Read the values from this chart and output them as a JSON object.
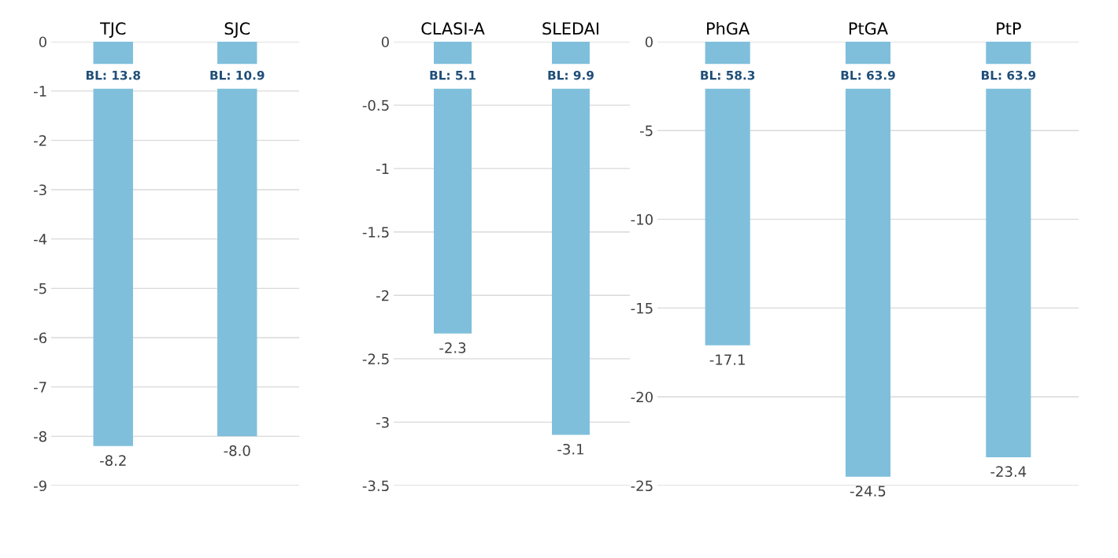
{
  "chart_data": [
    {
      "type": "bar",
      "categories": [
        "TJC",
        "SJC"
      ],
      "values": [
        -8.2,
        -8.0
      ],
      "value_labels": [
        "-8.2",
        "-8.0"
      ],
      "color": "#7fbfdb",
      "ylim": [
        -9,
        0
      ],
      "yticks": [
        0,
        -1,
        -2,
        -3,
        -4,
        -5,
        -6,
        -7,
        -8,
        -9
      ],
      "grid": "y",
      "annotations": [
        "BL: 13.8",
        "BL: 10.9"
      ]
    },
    {
      "type": "bar",
      "categories": [
        "CLASI-A",
        "SLEDAI"
      ],
      "values": [
        -2.3,
        -3.1
      ],
      "value_labels": [
        "-2.3",
        "-3.1"
      ],
      "color": "#7fbfdb",
      "ylim": [
        -3.5,
        0
      ],
      "yticks": [
        0,
        -0.5,
        -1,
        -1.5,
        -2,
        -2.5,
        -3,
        -3.5
      ],
      "grid": "y",
      "annotations": [
        "BL: 5.1",
        "BL: 9.9"
      ]
    },
    {
      "type": "bar",
      "categories": [
        "PhGA",
        "PtGA",
        "PtP"
      ],
      "values": [
        -17.1,
        -24.5,
        -23.4
      ],
      "value_labels": [
        "-17.1",
        "-24.5",
        "-23.4"
      ],
      "color": "#7fbfdb",
      "ylim": [
        -25,
        0
      ],
      "yticks": [
        0,
        -5,
        -10,
        -15,
        -20,
        -25
      ],
      "grid": "y",
      "annotations": [
        "BL: 58.3",
        "BL: 63.9",
        "BL: 63.9"
      ]
    }
  ]
}
